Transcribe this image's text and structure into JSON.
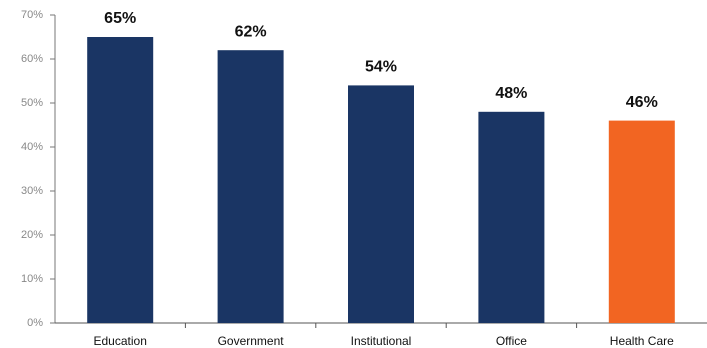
{
  "chart_data": {
    "type": "bar",
    "categories": [
      "Education",
      "Government",
      "Institutional",
      "Office",
      "Health Care"
    ],
    "values": [
      65,
      62,
      54,
      48,
      46
    ],
    "value_labels": [
      "65%",
      "62%",
      "54%",
      "48%",
      "46%"
    ],
    "colors": [
      "#1a3564",
      "#1a3564",
      "#1a3564",
      "#1a3564",
      "#f26522"
    ],
    "ylim": [
      0,
      70
    ],
    "yticks": [
      {
        "value": 0,
        "label": "0%"
      },
      {
        "value": 10,
        "label": "10%"
      },
      {
        "value": 20,
        "label": "20%"
      },
      {
        "value": 30,
        "label": "30%"
      },
      {
        "value": 40,
        "label": "40%"
      },
      {
        "value": 50,
        "label": "50%"
      },
      {
        "value": 60,
        "label": "60%"
      },
      {
        "value": 70,
        "label": "70%"
      }
    ],
    "grid": false
  }
}
